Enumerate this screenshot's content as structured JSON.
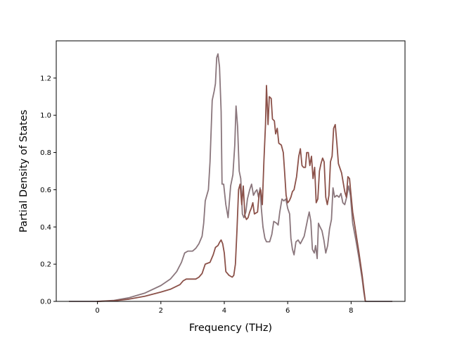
{
  "chart_data": {
    "type": "line",
    "title": "",
    "xlabel": "Frequency (THz)",
    "ylabel": "Partial Density of States",
    "xlim": [
      -1.3,
      9.7
    ],
    "ylim": [
      0,
      1.4
    ],
    "x_ticks": [
      0,
      2,
      4,
      6,
      8
    ],
    "y_ticks": [
      0.0,
      0.2,
      0.4,
      0.6,
      0.8,
      1.0,
      1.2
    ],
    "x_tick_labels": [
      "0",
      "2",
      "4",
      "6",
      "8"
    ],
    "y_tick_labels": [
      "0.0",
      "0.2",
      "0.4",
      "0.6",
      "0.8",
      "1.0",
      "1.2"
    ],
    "grid": false,
    "legend": false,
    "series": [
      {
        "color": "#8a767c",
        "points": [
          [
            -0.9,
            0
          ],
          [
            0,
            0
          ],
          [
            0.5,
            0.005
          ],
          [
            1.0,
            0.02
          ],
          [
            1.5,
            0.045
          ],
          [
            2.0,
            0.085
          ],
          [
            2.3,
            0.12
          ],
          [
            2.5,
            0.16
          ],
          [
            2.65,
            0.21
          ],
          [
            2.75,
            0.26
          ],
          [
            2.85,
            0.27
          ],
          [
            3.0,
            0.27
          ],
          [
            3.1,
            0.285
          ],
          [
            3.2,
            0.31
          ],
          [
            3.3,
            0.35
          ],
          [
            3.35,
            0.42
          ],
          [
            3.4,
            0.54
          ],
          [
            3.5,
            0.6
          ],
          [
            3.55,
            0.75
          ],
          [
            3.62,
            1.08
          ],
          [
            3.68,
            1.13
          ],
          [
            3.72,
            1.17
          ],
          [
            3.76,
            1.31
          ],
          [
            3.8,
            1.33
          ],
          [
            3.85,
            1.26
          ],
          [
            3.9,
            1.02
          ],
          [
            3.93,
            0.63
          ],
          [
            3.98,
            0.63
          ],
          [
            4.05,
            0.52
          ],
          [
            4.12,
            0.45
          ],
          [
            4.2,
            0.62
          ],
          [
            4.27,
            0.68
          ],
          [
            4.33,
            0.84
          ],
          [
            4.37,
            1.05
          ],
          [
            4.42,
            0.94
          ],
          [
            4.47,
            0.7
          ],
          [
            4.52,
            0.66
          ],
          [
            4.57,
            0.47
          ],
          [
            4.62,
            0.45
          ],
          [
            4.68,
            0.48
          ],
          [
            4.73,
            0.55
          ],
          [
            4.8,
            0.6
          ],
          [
            4.86,
            0.63
          ],
          [
            4.92,
            0.57
          ],
          [
            4.98,
            0.59
          ],
          [
            5.03,
            0.6
          ],
          [
            5.08,
            0.56
          ],
          [
            5.13,
            0.61
          ],
          [
            5.17,
            0.5
          ],
          [
            5.22,
            0.4
          ],
          [
            5.28,
            0.34
          ],
          [
            5.33,
            0.32
          ],
          [
            5.43,
            0.32
          ],
          [
            5.5,
            0.36
          ],
          [
            5.56,
            0.43
          ],
          [
            5.65,
            0.42
          ],
          [
            5.7,
            0.41
          ],
          [
            5.75,
            0.48
          ],
          [
            5.82,
            0.55
          ],
          [
            5.88,
            0.54
          ],
          [
            5.94,
            0.55
          ],
          [
            6.0,
            0.5
          ],
          [
            6.06,
            0.47
          ],
          [
            6.1,
            0.34
          ],
          [
            6.15,
            0.28
          ],
          [
            6.2,
            0.25
          ],
          [
            6.26,
            0.32
          ],
          [
            6.33,
            0.33
          ],
          [
            6.4,
            0.31
          ],
          [
            6.46,
            0.33
          ],
          [
            6.52,
            0.35
          ],
          [
            6.58,
            0.4
          ],
          [
            6.64,
            0.45
          ],
          [
            6.68,
            0.48
          ],
          [
            6.73,
            0.43
          ],
          [
            6.78,
            0.28
          ],
          [
            6.84,
            0.26
          ],
          [
            6.88,
            0.3
          ],
          [
            6.93,
            0.23
          ],
          [
            6.97,
            0.42
          ],
          [
            7.02,
            0.4
          ],
          [
            7.08,
            0.38
          ],
          [
            7.14,
            0.33
          ],
          [
            7.2,
            0.26
          ],
          [
            7.26,
            0.3
          ],
          [
            7.32,
            0.39
          ],
          [
            7.38,
            0.44
          ],
          [
            7.43,
            0.61
          ],
          [
            7.48,
            0.56
          ],
          [
            7.55,
            0.57
          ],
          [
            7.62,
            0.56
          ],
          [
            7.68,
            0.58
          ],
          [
            7.74,
            0.53
          ],
          [
            7.8,
            0.52
          ],
          [
            7.86,
            0.56
          ],
          [
            7.92,
            0.62
          ],
          [
            7.98,
            0.57
          ],
          [
            8.05,
            0.42
          ],
          [
            8.15,
            0.33
          ],
          [
            8.25,
            0.23
          ],
          [
            8.35,
            0.12
          ],
          [
            8.4,
            0.05
          ],
          [
            8.45,
            0
          ],
          [
            9.3,
            0
          ]
        ]
      },
      {
        "color": "#8b5149",
        "points": [
          [
            0,
            0
          ],
          [
            0.5,
            0.003
          ],
          [
            1.0,
            0.012
          ],
          [
            1.5,
            0.028
          ],
          [
            2.0,
            0.05
          ],
          [
            2.3,
            0.065
          ],
          [
            2.6,
            0.09
          ],
          [
            2.7,
            0.11
          ],
          [
            2.8,
            0.12
          ],
          [
            3.1,
            0.12
          ],
          [
            3.2,
            0.13
          ],
          [
            3.3,
            0.15
          ],
          [
            3.4,
            0.2
          ],
          [
            3.55,
            0.21
          ],
          [
            3.65,
            0.25
          ],
          [
            3.72,
            0.29
          ],
          [
            3.8,
            0.3
          ],
          [
            3.86,
            0.32
          ],
          [
            3.9,
            0.33
          ],
          [
            3.95,
            0.31
          ],
          [
            4.0,
            0.26
          ],
          [
            4.05,
            0.16
          ],
          [
            4.15,
            0.14
          ],
          [
            4.25,
            0.13
          ],
          [
            4.3,
            0.14
          ],
          [
            4.35,
            0.2
          ],
          [
            4.4,
            0.38
          ],
          [
            4.45,
            0.6
          ],
          [
            4.5,
            0.63
          ],
          [
            4.55,
            0.52
          ],
          [
            4.6,
            0.62
          ],
          [
            4.65,
            0.46
          ],
          [
            4.7,
            0.44
          ],
          [
            4.75,
            0.45
          ],
          [
            4.8,
            0.48
          ],
          [
            4.85,
            0.5
          ],
          [
            4.9,
            0.53
          ],
          [
            4.95,
            0.47
          ],
          [
            5.05,
            0.48
          ],
          [
            5.1,
            0.58
          ],
          [
            5.15,
            0.6
          ],
          [
            5.2,
            0.52
          ],
          [
            5.25,
            0.75
          ],
          [
            5.3,
            0.95
          ],
          [
            5.33,
            1.16
          ],
          [
            5.38,
            0.95
          ],
          [
            5.42,
            1.1
          ],
          [
            5.48,
            1.09
          ],
          [
            5.52,
            0.98
          ],
          [
            5.58,
            0.97
          ],
          [
            5.62,
            0.9
          ],
          [
            5.67,
            0.93
          ],
          [
            5.72,
            0.85
          ],
          [
            5.8,
            0.84
          ],
          [
            5.86,
            0.8
          ],
          [
            5.9,
            0.7
          ],
          [
            5.95,
            0.57
          ],
          [
            6.0,
            0.53
          ],
          [
            6.05,
            0.54
          ],
          [
            6.1,
            0.56
          ],
          [
            6.15,
            0.59
          ],
          [
            6.2,
            0.6
          ],
          [
            6.28,
            0.67
          ],
          [
            6.35,
            0.78
          ],
          [
            6.4,
            0.82
          ],
          [
            6.45,
            0.73
          ],
          [
            6.5,
            0.72
          ],
          [
            6.56,
            0.72
          ],
          [
            6.6,
            0.8
          ],
          [
            6.65,
            0.8
          ],
          [
            6.7,
            0.73
          ],
          [
            6.75,
            0.78
          ],
          [
            6.8,
            0.66
          ],
          [
            6.85,
            0.72
          ],
          [
            6.9,
            0.53
          ],
          [
            6.95,
            0.55
          ],
          [
            7.0,
            0.7
          ],
          [
            7.05,
            0.74
          ],
          [
            7.1,
            0.77
          ],
          [
            7.15,
            0.75
          ],
          [
            7.2,
            0.56
          ],
          [
            7.25,
            0.52
          ],
          [
            7.3,
            0.57
          ],
          [
            7.35,
            0.75
          ],
          [
            7.4,
            0.78
          ],
          [
            7.45,
            0.93
          ],
          [
            7.5,
            0.95
          ],
          [
            7.55,
            0.85
          ],
          [
            7.6,
            0.74
          ],
          [
            7.7,
            0.69
          ],
          [
            7.8,
            0.59
          ],
          [
            7.85,
            0.56
          ],
          [
            7.9,
            0.67
          ],
          [
            7.95,
            0.66
          ],
          [
            8.0,
            0.57
          ],
          [
            8.05,
            0.48
          ],
          [
            8.15,
            0.37
          ],
          [
            8.25,
            0.26
          ],
          [
            8.35,
            0.14
          ],
          [
            8.42,
            0.04
          ],
          [
            8.45,
            0
          ]
        ]
      }
    ]
  }
}
